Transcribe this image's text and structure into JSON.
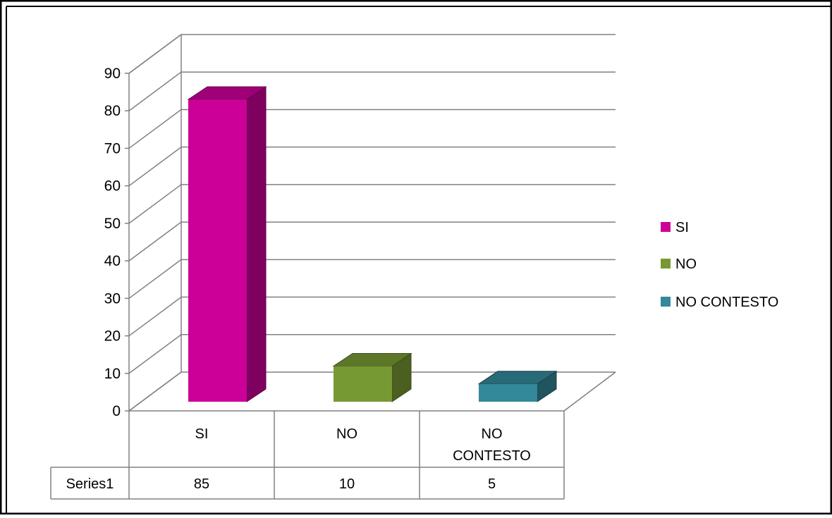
{
  "chart_data": {
    "type": "bar",
    "categories": [
      "SI",
      "NO",
      "NO CONTESTO"
    ],
    "category_label_lines": [
      [
        "SI"
      ],
      [
        "NO"
      ],
      [
        "NO",
        "CONTESTO"
      ]
    ],
    "series": [
      {
        "name": "Series1",
        "values": [
          85,
          10,
          5
        ]
      }
    ],
    "point_colors": [
      "#cc0099",
      "#779933",
      "#338899"
    ],
    "ylim": [
      0,
      90
    ],
    "yticks": [
      0,
      10,
      20,
      30,
      40,
      50,
      60,
      70,
      80,
      90
    ],
    "grid": true,
    "three_d": true,
    "legend": {
      "position": "right",
      "entries": [
        "SI",
        "NO",
        "NO CONTESTO"
      ]
    },
    "data_table": {
      "row_header": "Series1",
      "values": [
        "85",
        "10",
        "5"
      ]
    },
    "title": "",
    "xlabel": "",
    "ylabel": ""
  }
}
